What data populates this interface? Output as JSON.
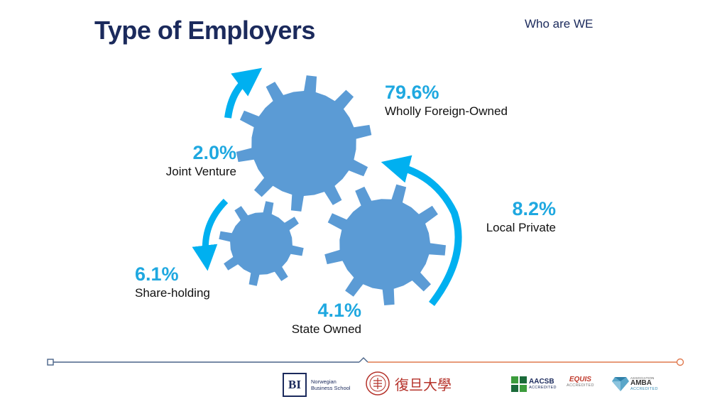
{
  "slide": {
    "title": "Type of Employers",
    "section": "Who are WE"
  },
  "stats": [
    {
      "pct": "79.6%",
      "label": "Wholly Foreign-Owned"
    },
    {
      "pct": "2.0%",
      "label": "Joint Venture"
    },
    {
      "pct": "8.2%",
      "label": "Local Private"
    },
    {
      "pct": "6.1%",
      "label": "Share-holding"
    },
    {
      "pct": "4.1%",
      "label": "State Owned"
    }
  ],
  "colors": {
    "title": "#1b2a5c",
    "percent": "#1fa8e0",
    "gear": "#5b9bd5",
    "arrow": "#00b0f0",
    "footer_left": "#4a6488",
    "footer_right": "#e07a4f"
  },
  "footer": {
    "bi_mark": "BI",
    "bi_line1": "Norwegian",
    "bi_line2": "Business School",
    "fudan_name": "復旦大學",
    "aacsb": "AACSB",
    "aacsb_sub": "ACCREDITED",
    "equis": "EQUIS",
    "equis_sub": "ACCREDITED",
    "amba": "AMBA",
    "amba_sub": "ACCREDITED",
    "amba_top": "ASSOCIATION"
  }
}
